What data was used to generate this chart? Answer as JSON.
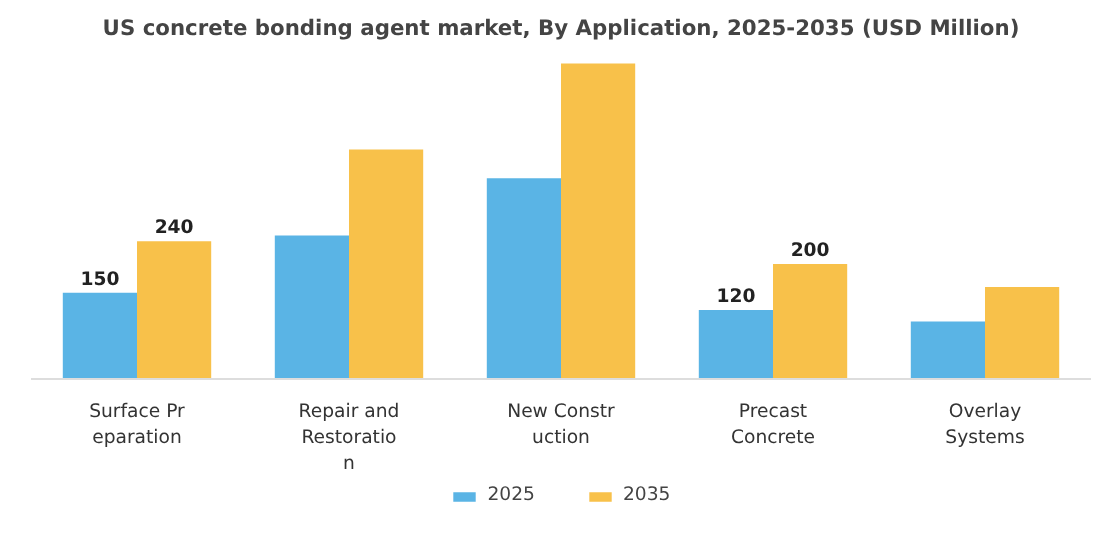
{
  "chart_data": {
    "type": "bar",
    "title": "US concrete bonding agent market, By Application, 2025-2035 (USD Million)",
    "categories": [
      "Surface Pr\neparation",
      "Repair and\nRestoratio\nn",
      "New Constr\nuction",
      "Precast\nConcrete",
      "Overlay\nSystems"
    ],
    "series": [
      {
        "name": "2025",
        "color": "#5ab4e5",
        "values": [
          150,
          250,
          350,
          120,
          100
        ],
        "value_labels": [
          "150",
          null,
          null,
          "120",
          null
        ]
      },
      {
        "name": "2035",
        "color": "#f8c14a",
        "values": [
          240,
          400,
          550,
          200,
          160
        ],
        "value_labels": [
          "240",
          null,
          null,
          "200",
          null
        ]
      }
    ],
    "tick_labels": "x",
    "legend": "bottom",
    "grid": false
  }
}
